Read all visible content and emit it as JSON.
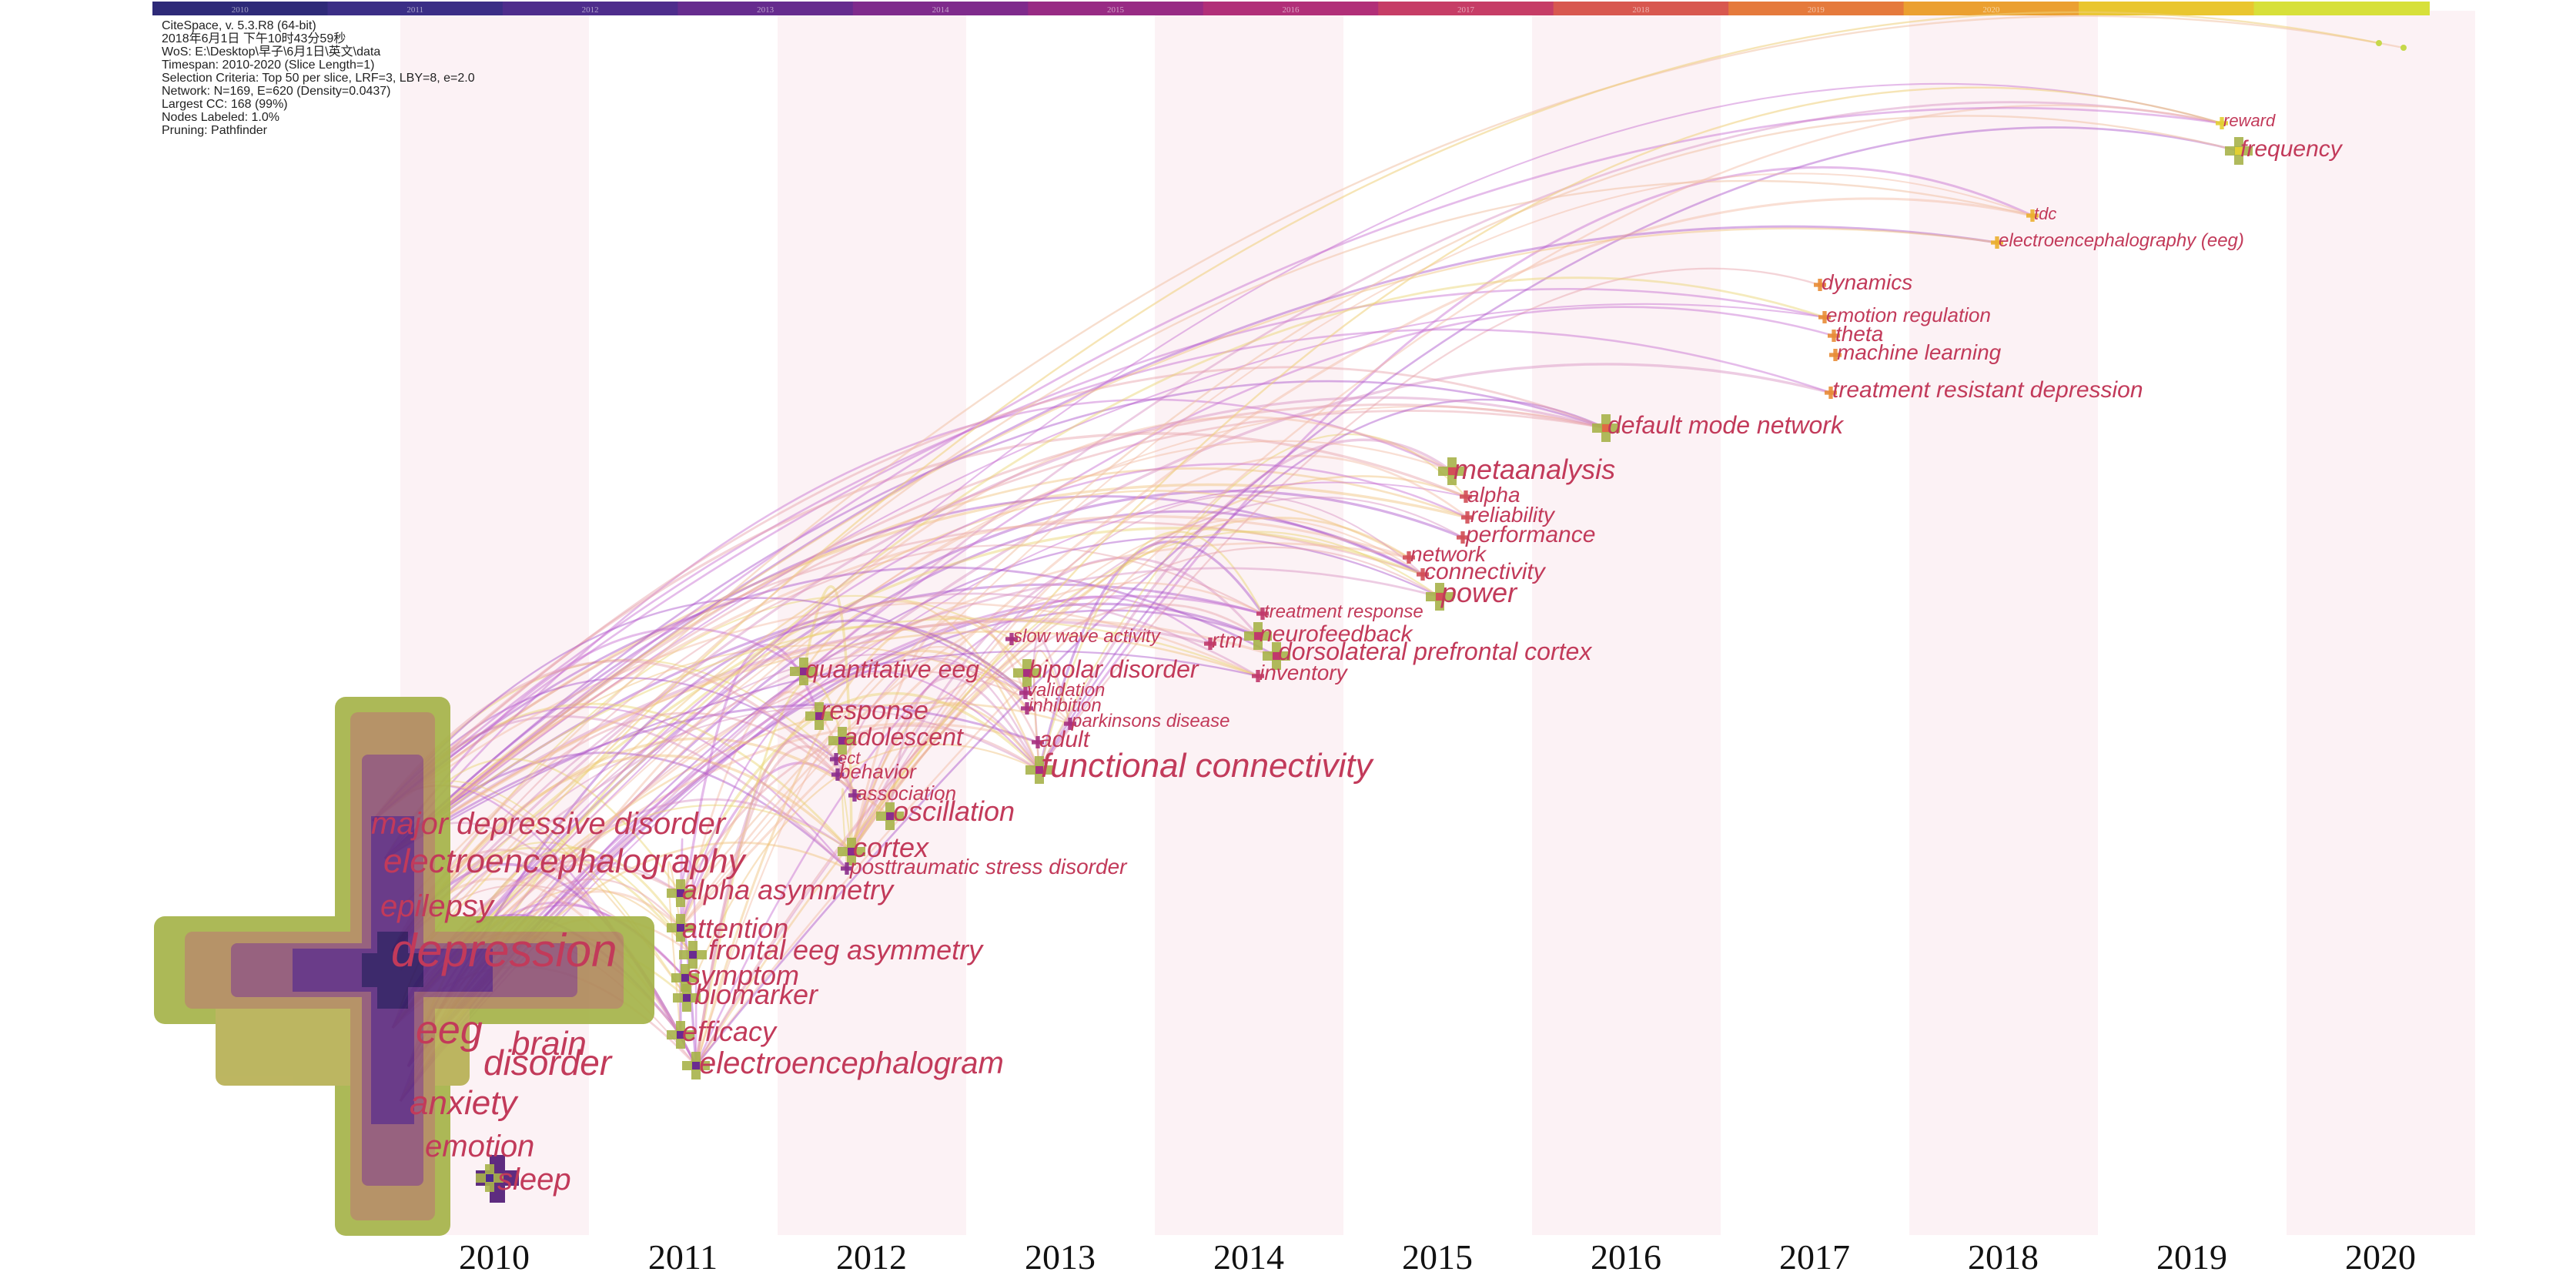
{
  "metadata": [
    "CiteSpace, v. 5.3.R8 (64-bit)",
    "2018年6月1日 下午10时43分59秒",
    "WoS: E:\\Desktop\\早子\\6月1日\\英文\\data",
    "Timespan: 2010-2020 (Slice Length=1)",
    "Selection Criteria: Top 50 per slice, LRF=3, LBY=8, e=2.0",
    "Network: N=169, E=620 (Density=0.0437)",
    "Largest CC: 168 (99%)",
    "Nodes Labeled: 1.0%",
    "Pruning: Pathfinder"
  ],
  "timeline_colors": [
    "#2e2a78",
    "#3b2e86",
    "#4e2d8c",
    "#662c8e",
    "#7f2b8c",
    "#982b84",
    "#b12f78",
    "#c63d66",
    "#d8584f",
    "#e57a3c",
    "#eba031",
    "#e9c630",
    "#d7e03a"
  ],
  "years": [
    "2010",
    "2011",
    "2012",
    "2013",
    "2014",
    "2015",
    "2016",
    "2017",
    "2018",
    "2019",
    "2020"
  ],
  "year_colors": [
    "#4c2a8e",
    "#6a2b90",
    "#8a2d8c",
    "#a7307f",
    "#c0396c",
    "#d24f57",
    "#e06a45",
    "#e88c36",
    "#ebaf2f",
    "#e2cf32",
    "#c6e040"
  ],
  "keywords": [
    {
      "text": "depression",
      "year": 2010,
      "size": 2
    },
    {
      "text": "eeg",
      "year": 2010,
      "size": 2
    },
    {
      "text": "electroencephalography",
      "year": 2010,
      "size": 2
    },
    {
      "text": "major depressive disorder",
      "year": 2010,
      "size": 2
    },
    {
      "text": "epilepsy",
      "year": 2010,
      "size": 2
    },
    {
      "text": "brain",
      "year": 2010,
      "size": 2
    },
    {
      "text": "disorder",
      "year": 2010,
      "size": 2
    },
    {
      "text": "anxiety",
      "year": 2010,
      "size": 2
    },
    {
      "text": "emotion",
      "year": 2010,
      "size": 2
    },
    {
      "text": "sleep",
      "year": 2010,
      "size": 1
    },
    {
      "text": "alpha asymmetry",
      "year": 2011,
      "size": 1
    },
    {
      "text": "attention",
      "year": 2011,
      "size": 1
    },
    {
      "text": "frontal eeg asymmetry",
      "year": 2011,
      "size": 1
    },
    {
      "text": "symptom",
      "year": 2011,
      "size": 1
    },
    {
      "text": "biomarker",
      "year": 2011,
      "size": 1
    },
    {
      "text": "efficacy",
      "year": 2011,
      "size": 1
    },
    {
      "text": "electroencephalogram",
      "year": 2011,
      "size": 1
    },
    {
      "text": "quantitative eeg",
      "year": 2012,
      "size": 1
    },
    {
      "text": "response",
      "year": 2012,
      "size": 1
    },
    {
      "text": "adolescent",
      "year": 2012,
      "size": 1
    },
    {
      "text": "ect",
      "year": 2012,
      "size": 0
    },
    {
      "text": "behavior",
      "year": 2012,
      "size": 0
    },
    {
      "text": "association",
      "year": 2012,
      "size": 0
    },
    {
      "text": "oscillation",
      "year": 2012,
      "size": 1
    },
    {
      "text": "cortex",
      "year": 2012,
      "size": 1
    },
    {
      "text": "posttraumatic stress disorder",
      "year": 2012,
      "size": 0
    },
    {
      "text": "slow wave activity",
      "year": 2013,
      "size": 0
    },
    {
      "text": "bipolar disorder",
      "year": 2013,
      "size": 1
    },
    {
      "text": "validation",
      "year": 2013,
      "size": 0
    },
    {
      "text": "inhibition",
      "year": 2013,
      "size": 0
    },
    {
      "text": "parkinsons disease",
      "year": 2013,
      "size": 0
    },
    {
      "text": "adult",
      "year": 2013,
      "size": 0
    },
    {
      "text": "functional connectivity",
      "year": 2013,
      "size": 1
    },
    {
      "text": "rtm",
      "year": 2014,
      "size": 0
    },
    {
      "text": "treatment response",
      "year": 2014,
      "size": 0
    },
    {
      "text": "neurofeedback",
      "year": 2014,
      "size": 1
    },
    {
      "text": "dorsolateral prefrontal cortex",
      "year": 2014,
      "size": 1
    },
    {
      "text": "inventory",
      "year": 2014,
      "size": 0
    },
    {
      "text": "metaanalysis",
      "year": 2015,
      "size": 1
    },
    {
      "text": "alpha",
      "year": 2015,
      "size": 0
    },
    {
      "text": "reliability",
      "year": 2015,
      "size": 0
    },
    {
      "text": "performance",
      "year": 2015,
      "size": 0
    },
    {
      "text": "network",
      "year": 2015,
      "size": 0
    },
    {
      "text": "connectivity",
      "year": 2015,
      "size": 0
    },
    {
      "text": "power",
      "year": 2015,
      "size": 1
    },
    {
      "text": "default mode network",
      "year": 2016,
      "size": 1
    },
    {
      "text": "dynamics",
      "year": 2017,
      "size": 0
    },
    {
      "text": "emotion regulation",
      "year": 2017,
      "size": 0
    },
    {
      "text": "theta",
      "year": 2017,
      "size": 0
    },
    {
      "text": "machine learning",
      "year": 2017,
      "size": 0
    },
    {
      "text": "treatment resistant depression",
      "year": 2017,
      "size": 0
    },
    {
      "text": "tdc",
      "year": 2018,
      "size": 0
    },
    {
      "text": "electroencephalography (eeg)",
      "year": 2018,
      "size": 0
    },
    {
      "text": "reward",
      "year": 2019,
      "size": 0
    },
    {
      "text": "frequency",
      "year": 2019,
      "size": 1
    }
  ]
}
